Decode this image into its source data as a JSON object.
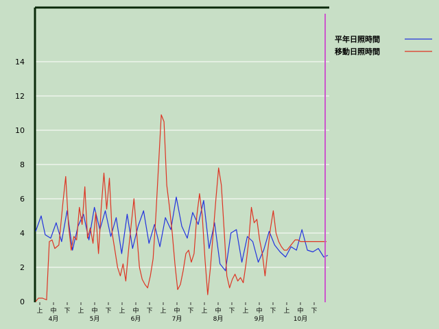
{
  "chart_data": {
    "type": "line",
    "title": "",
    "xlabel": "",
    "ylabel": "",
    "ylim": [
      0,
      17
    ],
    "yticks": [
      0,
      2,
      4,
      6,
      8,
      10,
      12,
      14
    ],
    "grid": "horizontal",
    "legend_position": "top-right",
    "period_ticks": [
      "上",
      "中",
      "下",
      "上",
      "中",
      "下",
      "上",
      "中",
      "下",
      "上",
      "中",
      "下",
      "上",
      "中",
      "下",
      "上",
      "中",
      "下",
      "上",
      "中",
      "下"
    ],
    "month_labels": [
      "4月",
      "5月",
      "6月",
      "7月",
      "8月",
      "9月",
      "10月"
    ],
    "x_range": [
      1,
      215
    ],
    "marker_x": 213,
    "series": [
      {
        "name": "平年日照時間",
        "color": "#2233dd",
        "x": [
          1,
          5,
          8,
          12,
          16,
          20,
          24,
          28,
          32,
          36,
          40,
          44,
          48,
          52,
          56,
          60,
          64,
          68,
          72,
          76,
          80,
          84,
          88,
          92,
          96,
          100,
          104,
          108,
          112,
          116,
          120,
          124,
          128,
          132,
          136,
          140,
          144,
          148,
          152,
          156,
          160,
          164,
          168,
          172,
          176,
          180,
          184,
          188,
          192,
          196,
          200,
          204,
          208,
          212,
          215
        ],
        "values": [
          4.1,
          5.0,
          3.9,
          3.7,
          4.6,
          3.5,
          5.3,
          3.0,
          4.4,
          5.1,
          3.6,
          5.5,
          4.2,
          5.3,
          3.8,
          4.9,
          2.8,
          5.1,
          3.1,
          4.4,
          5.3,
          3.4,
          4.5,
          3.2,
          4.9,
          4.2,
          6.1,
          4.4,
          3.7,
          5.2,
          4.5,
          5.9,
          3.1,
          4.6,
          2.2,
          1.8,
          4.0,
          4.2,
          2.3,
          3.8,
          3.5,
          2.3,
          3.0,
          4.1,
          3.3,
          2.9,
          2.6,
          3.2,
          3.0,
          4.2,
          3.0,
          2.9,
          3.1,
          2.6,
          2.7
        ]
      },
      {
        "name": "移動日照時間",
        "color": "#dd3322",
        "x": [
          1,
          3,
          6,
          9,
          11,
          13,
          15,
          18,
          21,
          23,
          25,
          27,
          29,
          31,
          33,
          35,
          37,
          39,
          41,
          43,
          45,
          47,
          49,
          51,
          53,
          55,
          57,
          59,
          61,
          63,
          65,
          67,
          69,
          71,
          73,
          75,
          77,
          79,
          81,
          83,
          85,
          87,
          89,
          91,
          93,
          95,
          97,
          99,
          101,
          103,
          105,
          107,
          109,
          111,
          113,
          115,
          117,
          119,
          121,
          123,
          125,
          127,
          129,
          131,
          133,
          135,
          137,
          139,
          141,
          143,
          145,
          147,
          149,
          151,
          153,
          155,
          157,
          159,
          161,
          163,
          165,
          167,
          169,
          171,
          173,
          175,
          177,
          179,
          181,
          183,
          185,
          187,
          189,
          191,
          193,
          195,
          197,
          199,
          201,
          203,
          205,
          207,
          209,
          211,
          213,
          214
        ],
        "values": [
          0.0,
          0.2,
          0.2,
          0.1,
          3.5,
          3.6,
          3.1,
          3.3,
          5.8,
          7.3,
          4.5,
          3.0,
          3.8,
          3.6,
          5.5,
          4.5,
          6.7,
          3.7,
          4.3,
          3.4,
          5.2,
          2.8,
          5.5,
          7.5,
          5.4,
          7.2,
          4.0,
          3.0,
          2.0,
          1.5,
          2.2,
          1.2,
          3.0,
          4.5,
          6.0,
          4.0,
          2.0,
          1.3,
          1.0,
          0.8,
          1.5,
          2.5,
          5.0,
          8.0,
          10.9,
          10.5,
          6.8,
          5.5,
          4.0,
          2.2,
          0.7,
          1.0,
          1.8,
          2.8,
          3.0,
          2.3,
          2.8,
          5.0,
          6.3,
          5.0,
          2.5,
          0.4,
          2.0,
          4.0,
          6.0,
          7.8,
          6.8,
          4.2,
          1.5,
          0.8,
          1.3,
          1.6,
          1.2,
          1.4,
          1.1,
          2.2,
          3.5,
          5.5,
          4.6,
          4.8,
          3.6,
          2.8,
          1.5,
          3.0,
          4.3,
          5.3,
          4.0,
          3.5,
          3.2,
          3.0,
          3.0,
          3.2,
          3.4,
          3.6,
          3.6,
          3.5,
          3.5,
          3.5,
          3.5,
          3.5,
          3.5,
          3.5,
          3.5,
          3.5,
          3.5,
          3.5
        ]
      }
    ]
  }
}
